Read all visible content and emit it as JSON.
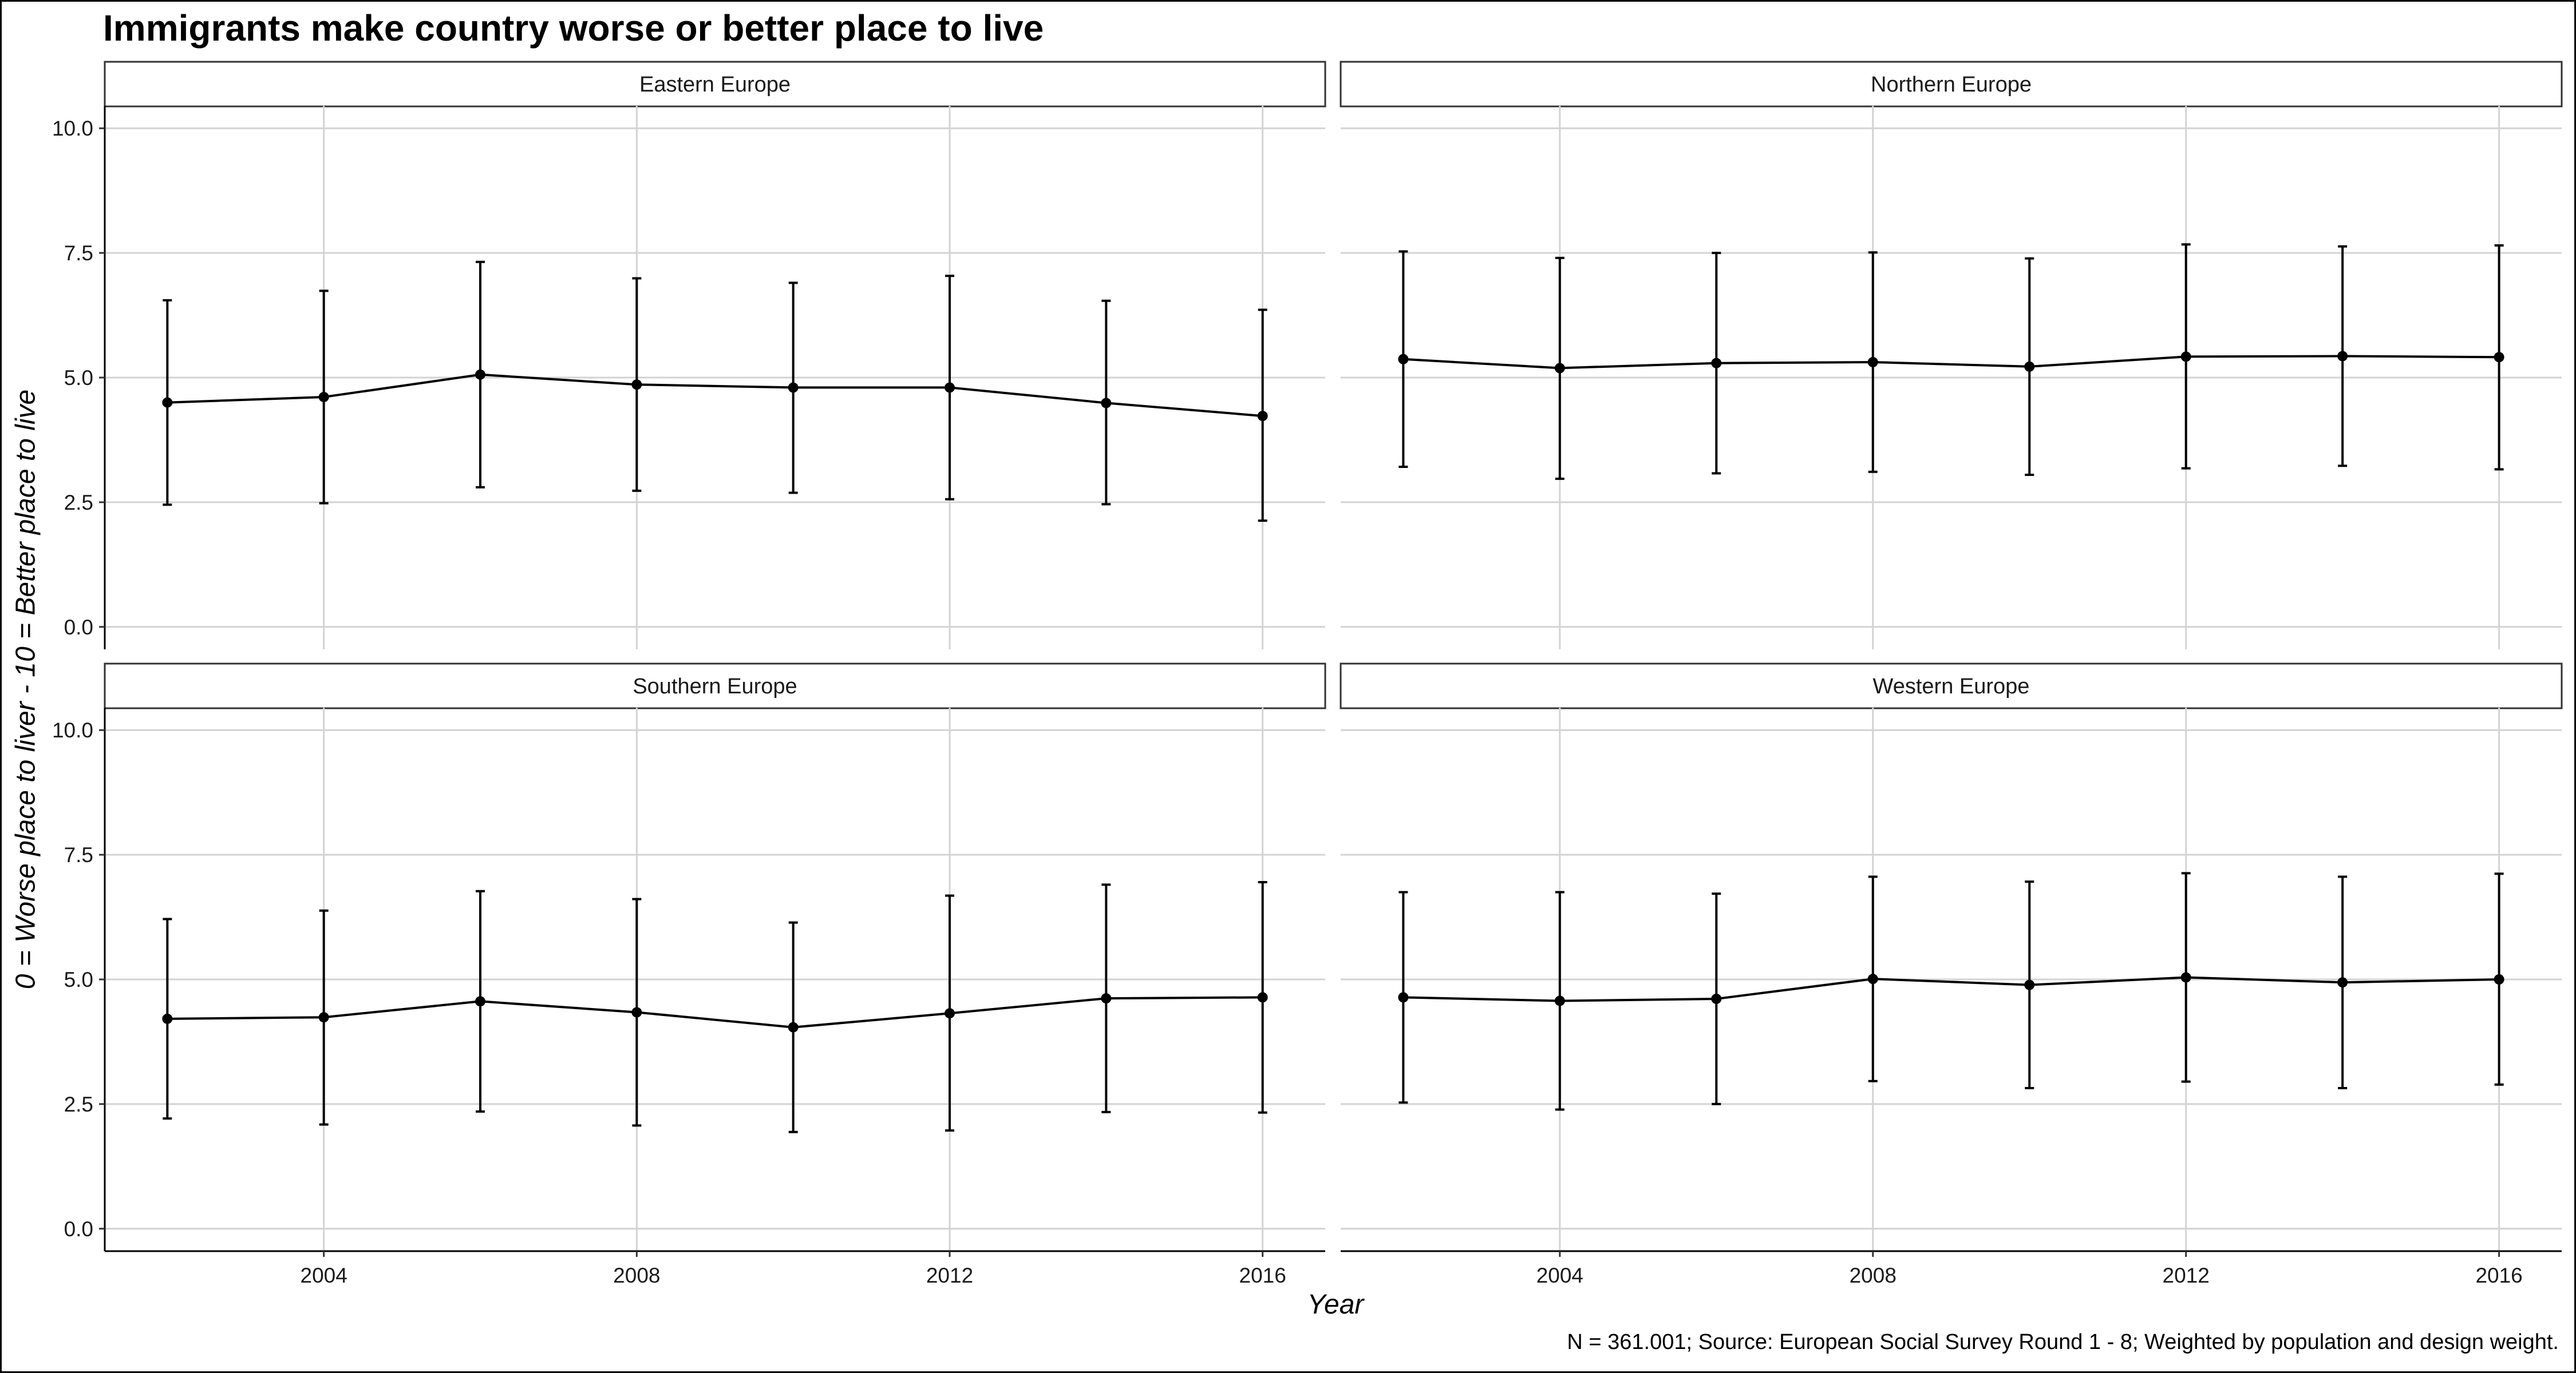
{
  "title": "Immigrants make country worse or better place to live",
  "ylabel": "0 = Worse place to liver - 10 = Better place to live",
  "xlabel": "Year",
  "caption": "N = 361.001; Source: European Social Survey Round 1 - 8; Weighted by population and design weight.",
  "colors": {
    "line": "#000000",
    "grid": "#d3d3d3",
    "strip_bg": "#ffffff",
    "background": "#ffffff"
  },
  "chart_data": {
    "type": "line",
    "facets": [
      "Eastern Europe",
      "Northern Europe",
      "Southern Europe",
      "Western Europe"
    ],
    "x_ticks": [
      2004,
      2008,
      2012,
      2016
    ],
    "y_ticks": [
      "0.0",
      "2.5",
      "5.0",
      "7.5",
      "10.0"
    ],
    "xlim": [
      2001.2,
      2016.8
    ],
    "ylim": [
      -0.45,
      10.45
    ],
    "grid": true,
    "error_bars": true,
    "series": [
      {
        "facet": "Eastern Europe",
        "x": [
          2002,
          2004,
          2006,
          2008,
          2010,
          2012,
          2014,
          2016
        ],
        "y": [
          4.5,
          4.61,
          5.06,
          4.86,
          4.8,
          4.8,
          4.49,
          4.23
        ],
        "lower": [
          2.45,
          2.48,
          2.8,
          2.73,
          2.69,
          2.56,
          2.46,
          2.13
        ],
        "upper": [
          6.55,
          6.74,
          7.32,
          6.99,
          6.9,
          7.04,
          6.54,
          6.36
        ]
      },
      {
        "facet": "Northern Europe",
        "x": [
          2002,
          2004,
          2006,
          2008,
          2010,
          2012,
          2014,
          2016
        ],
        "y": [
          5.37,
          5.19,
          5.29,
          5.31,
          5.22,
          5.42,
          5.43,
          5.41
        ],
        "lower": [
          3.21,
          2.97,
          3.08,
          3.11,
          3.05,
          3.18,
          3.23,
          3.16
        ],
        "upper": [
          7.53,
          7.4,
          7.5,
          7.51,
          7.39,
          7.67,
          7.63,
          7.65
        ]
      },
      {
        "facet": "Southern Europe",
        "x": [
          2002,
          2004,
          2006,
          2008,
          2010,
          2012,
          2014,
          2016
        ],
        "y": [
          4.21,
          4.24,
          4.56,
          4.34,
          4.04,
          4.32,
          4.62,
          4.64
        ],
        "lower": [
          2.21,
          2.09,
          2.35,
          2.07,
          1.94,
          1.97,
          2.34,
          2.33
        ],
        "upper": [
          6.21,
          6.38,
          6.77,
          6.61,
          6.14,
          6.68,
          6.9,
          6.95
        ]
      },
      {
        "facet": "Western Europe",
        "x": [
          2002,
          2004,
          2006,
          2008,
          2010,
          2012,
          2014,
          2016
        ],
        "y": [
          4.64,
          4.57,
          4.61,
          5.01,
          4.89,
          5.04,
          4.94,
          5.0
        ],
        "lower": [
          2.53,
          2.39,
          2.5,
          2.96,
          2.82,
          2.95,
          2.82,
          2.89
        ],
        "upper": [
          6.75,
          6.75,
          6.72,
          7.06,
          6.96,
          7.13,
          7.06,
          7.12
        ]
      }
    ]
  }
}
